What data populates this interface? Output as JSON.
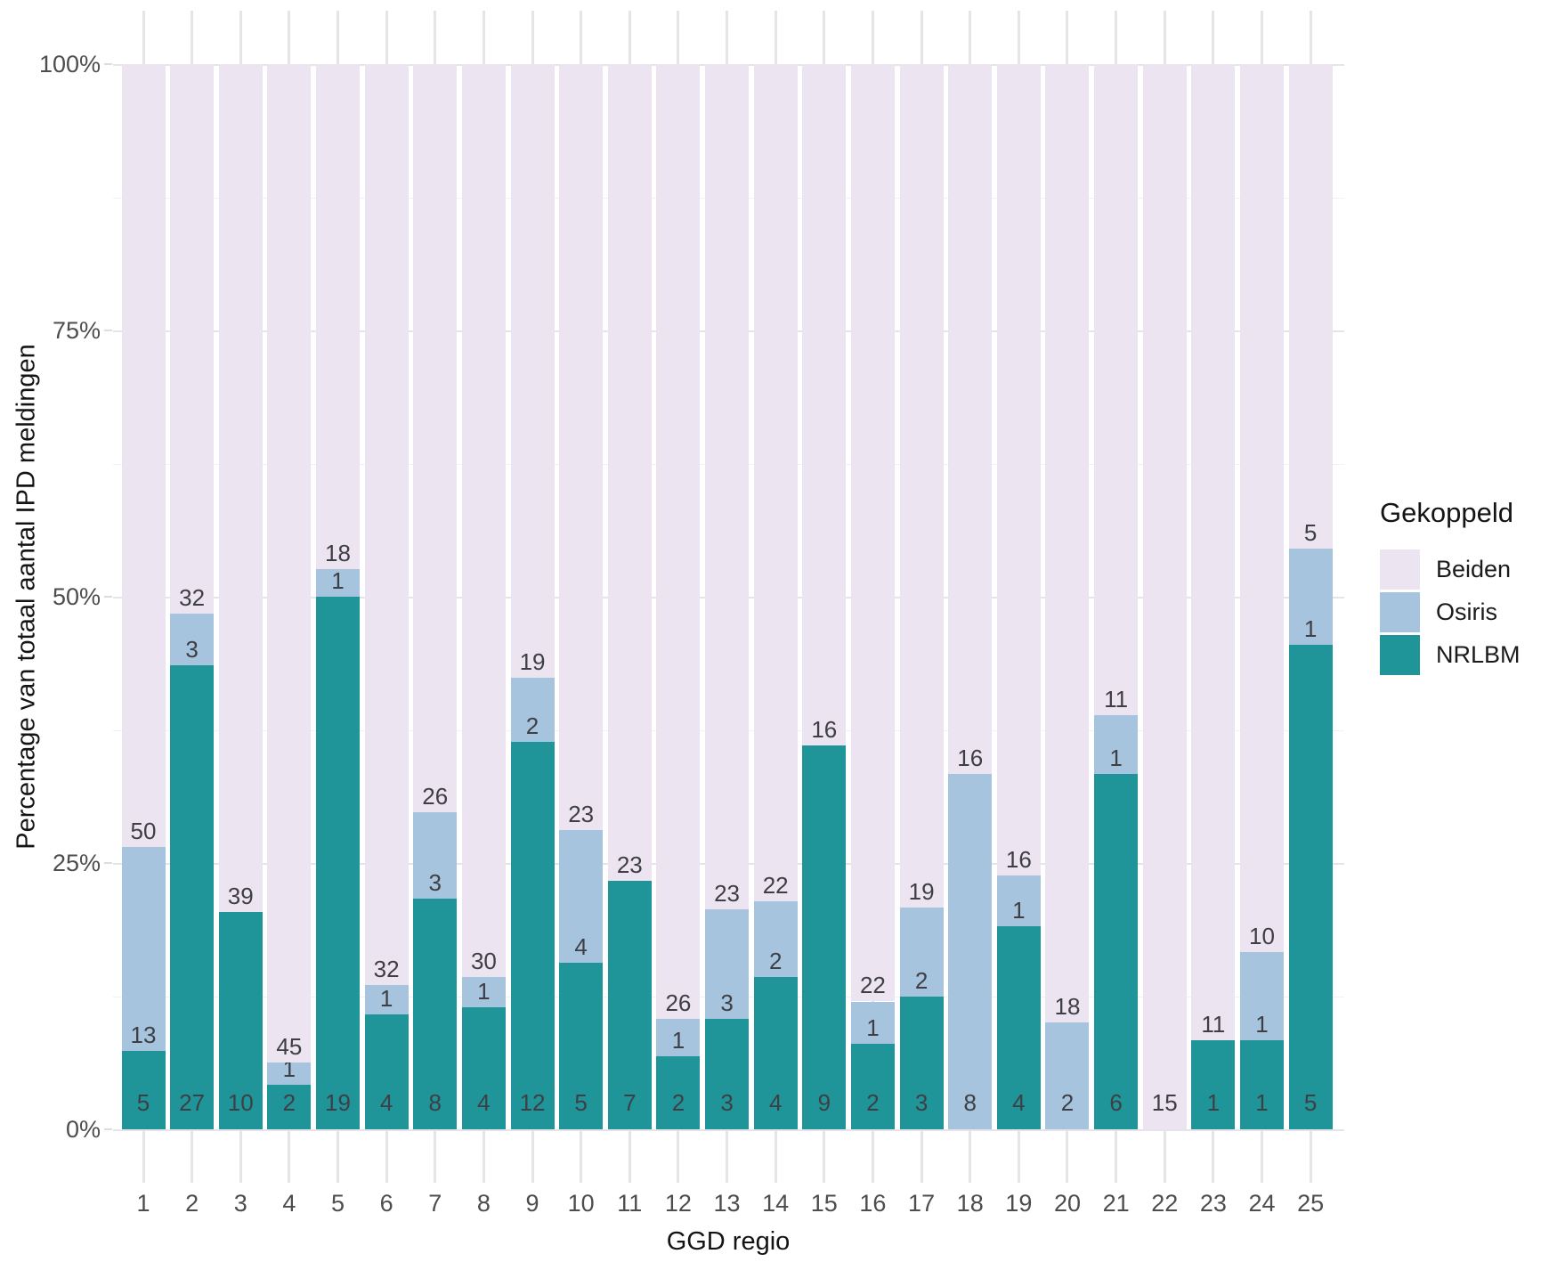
{
  "legend": {
    "title": "Gekoppeld",
    "items": [
      {
        "label": "Beiden",
        "color": "#ece4f1"
      },
      {
        "label": "Osiris",
        "color": "#a7c4de"
      },
      {
        "label": "NRLBM",
        "color": "#1f9599"
      }
    ]
  },
  "y_axis": {
    "title": "Percentage van totaal aantal IPD meldingen",
    "ticks": [
      {
        "label": "0%",
        "value": 0
      },
      {
        "label": "25%",
        "value": 25
      },
      {
        "label": "50%",
        "value": 50
      },
      {
        "label": "75%",
        "value": 75
      },
      {
        "label": "100%",
        "value": 100
      }
    ],
    "minor_gridlines": [
      12.5,
      37.5,
      62.5,
      87.5
    ]
  },
  "x_axis": {
    "title": "GGD regio"
  },
  "chart_data": {
    "type": "bar",
    "stacking": "percent",
    "title": "",
    "xlabel": "GGD regio",
    "ylabel": "Percentage van totaal aantal IPD meldingen",
    "ylim": [
      0,
      100
    ],
    "y_tick_labels": [
      "0%",
      "25%",
      "50%",
      "75%",
      "100%"
    ],
    "legend_title": "Gekoppeld",
    "legend_position": "right",
    "grid": true,
    "categories": [
      1,
      2,
      3,
      4,
      5,
      6,
      7,
      8,
      9,
      10,
      11,
      12,
      13,
      14,
      15,
      16,
      17,
      18,
      19,
      20,
      21,
      22,
      23,
      24,
      25
    ],
    "series": [
      {
        "name": "NRLBM",
        "values": [
          5,
          27,
          10,
          2,
          19,
          4,
          8,
          4,
          12,
          5,
          7,
          2,
          3,
          4,
          9,
          2,
          3,
          0,
          4,
          0,
          6,
          0,
          1,
          1,
          5
        ]
      },
      {
        "name": "Osiris",
        "values": [
          13,
          3,
          0,
          1,
          1,
          1,
          3,
          1,
          2,
          4,
          0,
          1,
          3,
          2,
          0,
          1,
          2,
          8,
          1,
          2,
          1,
          0,
          0,
          1,
          1
        ]
      },
      {
        "name": "Beiden",
        "values": [
          50,
          32,
          39,
          45,
          18,
          32,
          26,
          30,
          19,
          23,
          23,
          26,
          23,
          22,
          16,
          22,
          19,
          16,
          16,
          18,
          11,
          15,
          11,
          10,
          5
        ]
      }
    ],
    "colors": {
      "NRLBM": "#1f9599",
      "Osiris": "#a7c4de",
      "Beiden": "#ece4f1"
    }
  }
}
